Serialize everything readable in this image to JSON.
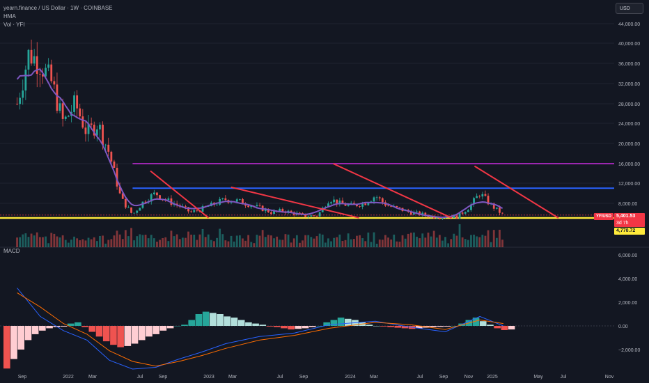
{
  "legend": {
    "symbol_line": "yearn.finance / US Dollar · 1W · COINBASE",
    "hma_label": "HMA",
    "vol_label": "Vol · YFI"
  },
  "macd_label": "MACD",
  "currency_button": "USD",
  "price_tag": {
    "symbol": "YFIUSD",
    "price": "5,401.53",
    "countdown": "3d 7h"
  },
  "level_tag": "4,770.72",
  "colors": {
    "background": "#131722",
    "up": "#26a69a",
    "down": "#ef5350",
    "hma": "#7e57c2",
    "trendline": "#f23645",
    "resistance_blue": "#2962ff",
    "resistance_purple": "#9c27b0",
    "support_yellow": "#ffeb3b",
    "macd_line": "#2962ff",
    "signal_line": "#ff6d00"
  },
  "chart_data": [
    {
      "type": "candlestick",
      "title": "yearn.finance / US Dollar · 1W · COINBASE",
      "price_axis_ticks": [
        "44,000.00",
        "40,000.00",
        "36,000.00",
        "32,000.00",
        "28,000.00",
        "24,000.00",
        "20,000.00",
        "16,000.00",
        "12,000.00",
        "8,000.00"
      ],
      "ylim": [
        4000,
        46000
      ],
      "time_axis_labels": [
        "Sep",
        "2022",
        "Mar",
        "Jul",
        "Sep",
        "2023",
        "Mar",
        "Jul",
        "Sep",
        "2024",
        "Mar",
        "Jul",
        "Sep",
        "Nov",
        "2025",
        "May",
        "Jul",
        "Nov"
      ],
      "last_price": 5401.53,
      "horizontal_levels": [
        {
          "name": "purple resistance",
          "price": 16000
        },
        {
          "name": "blue resistance",
          "price": 11000
        },
        {
          "name": "yellow support",
          "price": 4770.72
        }
      ],
      "close_path": [
        {
          "t": "2021-08",
          "close": 28000
        },
        {
          "t": "2021-09",
          "close": 38000
        },
        {
          "t": "2021-10",
          "close": 36000
        },
        {
          "t": "2021-11",
          "close": 32000
        },
        {
          "t": "2021-12",
          "close": 24000
        },
        {
          "t": "2022-01",
          "close": 28000
        },
        {
          "t": "2022-02",
          "close": 22000
        },
        {
          "t": "2022-03",
          "close": 24000
        },
        {
          "t": "2022-04",
          "close": 18000
        },
        {
          "t": "2022-05",
          "close": 9000
        },
        {
          "t": "2022-06",
          "close": 5500
        },
        {
          "t": "2022-07",
          "close": 8500
        },
        {
          "t": "2022-08",
          "close": 10000
        },
        {
          "t": "2022-09",
          "close": 8500
        },
        {
          "t": "2022-10",
          "close": 7500
        },
        {
          "t": "2022-11",
          "close": 6000
        },
        {
          "t": "2022-12",
          "close": 6800
        },
        {
          "t": "2023-01",
          "close": 7800
        },
        {
          "t": "2023-02",
          "close": 8800
        },
        {
          "t": "2023-03",
          "close": 8500
        },
        {
          "t": "2023-04",
          "close": 7800
        },
        {
          "t": "2023-05",
          "close": 7000
        },
        {
          "t": "2023-06",
          "close": 6000
        },
        {
          "t": "2023-07",
          "close": 6400
        },
        {
          "t": "2023-08",
          "close": 5800
        },
        {
          "t": "2023-09",
          "close": 5200
        },
        {
          "t": "2023-10",
          "close": 5300
        },
        {
          "t": "2023-11",
          "close": 9000
        },
        {
          "t": "2023-12",
          "close": 7800
        },
        {
          "t": "2024-01",
          "close": 7500
        },
        {
          "t": "2024-02",
          "close": 8000
        },
        {
          "t": "2024-03",
          "close": 9500
        },
        {
          "t": "2024-04",
          "close": 7500
        },
        {
          "t": "2024-05",
          "close": 6800
        },
        {
          "t": "2024-06",
          "close": 6000
        },
        {
          "t": "2024-07",
          "close": 5600
        },
        {
          "t": "2024-08",
          "close": 5000
        },
        {
          "t": "2024-09",
          "close": 5100
        },
        {
          "t": "2024-10",
          "close": 5000
        },
        {
          "t": "2024-11",
          "close": 7000
        },
        {
          "t": "2024-12",
          "close": 10000
        },
        {
          "t": "2025-01",
          "close": 7500
        },
        {
          "t": "2025-02",
          "close": 5401.53
        }
      ]
    },
    {
      "type": "macd",
      "title": "MACD",
      "axis_ticks": [
        "6,000.00",
        "4,000.00",
        "2,000.00",
        "0.00",
        "−2,000.00"
      ],
      "ylim": [
        -3700,
        7000
      ],
      "histogram": [
        -3600,
        -2800,
        -2000,
        -1200,
        -700,
        -400,
        -200,
        -100,
        -60,
        200,
        300,
        -100,
        -500,
        -900,
        -1300,
        -1600,
        -1800,
        -1700,
        -1500,
        -1200,
        -900,
        -700,
        -400,
        -200,
        0,
        100,
        500,
        1000,
        1200,
        1100,
        1000,
        800,
        700,
        500,
        300,
        200,
        100,
        -50,
        -100,
        -200,
        -300,
        -250,
        -200,
        -100,
        0,
        300,
        500,
        700,
        600,
        500,
        300,
        100,
        0,
        -50,
        -100,
        -150,
        -200,
        -250,
        -200,
        -150,
        -100,
        -80,
        -60,
        0,
        200,
        500,
        700,
        400,
        100,
        -200,
        -350,
        -300
      ],
      "macd_line": [
        {
          "t": "2021-08",
          "value": 3200
        },
        {
          "t": "2021-10",
          "value": 800
        },
        {
          "t": "2021-12",
          "value": -400
        },
        {
          "t": "2022-02",
          "value": -1200
        },
        {
          "t": "2022-04",
          "value": -2900
        },
        {
          "t": "2022-06",
          "value": -3700
        },
        {
          "t": "2022-08",
          "value": -3500
        },
        {
          "t": "2022-10",
          "value": -2800
        },
        {
          "t": "2022-12",
          "value": -2200
        },
        {
          "t": "2023-02",
          "value": -1500
        },
        {
          "t": "2023-05",
          "value": -900
        },
        {
          "t": "2023-08",
          "value": -600
        },
        {
          "t": "2023-11",
          "value": 100
        },
        {
          "t": "2024-03",
          "value": 400
        },
        {
          "t": "2024-06",
          "value": -100
        },
        {
          "t": "2024-09",
          "value": -500
        },
        {
          "t": "2024-12",
          "value": 800
        },
        {
          "t": "2025-02",
          "value": 0
        }
      ],
      "signal_line": [
        {
          "t": "2021-08",
          "value": 2800
        },
        {
          "t": "2021-10",
          "value": 1600
        },
        {
          "t": "2021-12",
          "value": 200
        },
        {
          "t": "2022-02",
          "value": -700
        },
        {
          "t": "2022-04",
          "value": -2100
        },
        {
          "t": "2022-06",
          "value": -3000
        },
        {
          "t": "2022-08",
          "value": -3400
        },
        {
          "t": "2022-10",
          "value": -3000
        },
        {
          "t": "2022-12",
          "value": -2500
        },
        {
          "t": "2023-02",
          "value": -1900
        },
        {
          "t": "2023-05",
          "value": -1200
        },
        {
          "t": "2023-08",
          "value": -800
        },
        {
          "t": "2023-11",
          "value": -200
        },
        {
          "t": "2024-03",
          "value": 300
        },
        {
          "t": "2024-06",
          "value": 100
        },
        {
          "t": "2024-09",
          "value": -300
        },
        {
          "t": "2024-12",
          "value": 500
        },
        {
          "t": "2025-02",
          "value": 200
        }
      ]
    }
  ]
}
